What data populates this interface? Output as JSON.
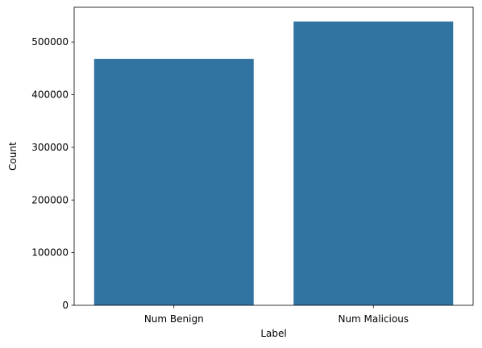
{
  "chart_data": {
    "type": "bar",
    "categories": [
      "Num Benign",
      "Num Malicious"
    ],
    "values": [
      468000,
      539000
    ],
    "xlabel": "Label",
    "ylabel": "Count",
    "ylim": [
      0,
      566000
    ],
    "yticks": [
      0,
      100000,
      200000,
      300000,
      400000,
      500000
    ],
    "yticks_labels": [
      "0",
      "100000",
      "200000",
      "300000",
      "400000",
      "500000"
    ],
    "bar_color": "#3274a1",
    "grid": false,
    "legend": "none"
  }
}
